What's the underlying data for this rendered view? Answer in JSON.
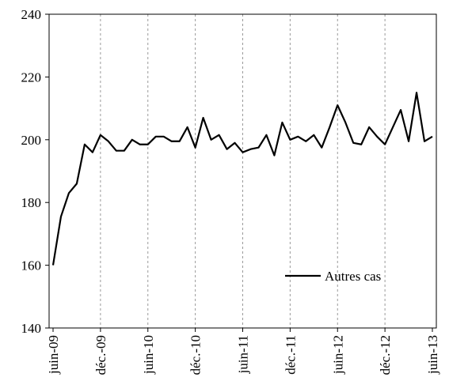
{
  "chart_data": {
    "type": "line",
    "title": "",
    "xlabel": "",
    "ylabel": "",
    "ylim": [
      140,
      240
    ],
    "yticks": [
      140,
      160,
      180,
      200,
      220,
      240
    ],
    "x_tick_labels": [
      "juin-09",
      "déc.-09",
      "juin-10",
      "déc.-10",
      "juin-11",
      "déc.-11",
      "juin-12",
      "déc.-12",
      "juin-13"
    ],
    "grid": "vertical dashed at x ticks",
    "legend_placement": "lower-right",
    "series": [
      {
        "name": "Autres cas",
        "color": "#000000",
        "x": [
          "2009-06",
          "2009-07",
          "2009-08",
          "2009-09",
          "2009-10",
          "2009-11",
          "2009-12",
          "2010-01",
          "2010-02",
          "2010-03",
          "2010-04",
          "2010-05",
          "2010-06",
          "2010-07",
          "2010-08",
          "2010-09",
          "2010-10",
          "2010-11",
          "2010-12",
          "2011-01",
          "2011-02",
          "2011-03",
          "2011-04",
          "2011-05",
          "2011-06",
          "2011-07",
          "2011-08",
          "2011-09",
          "2011-10",
          "2011-11",
          "2011-12",
          "2012-01",
          "2012-02",
          "2012-03",
          "2012-04",
          "2012-05",
          "2012-06",
          "2012-07",
          "2012-08",
          "2012-09",
          "2012-10",
          "2012-11",
          "2012-12",
          "2013-01",
          "2013-02",
          "2013-03",
          "2013-04",
          "2013-05",
          "2013-06"
        ],
        "values": [
          160,
          175.5,
          183,
          186,
          198.5,
          196,
          201.5,
          199.5,
          196.5,
          196.5,
          200,
          198.5,
          198.5,
          201,
          201,
          199.5,
          199.5,
          204,
          197.5,
          207,
          200,
          201.5,
          197,
          199,
          196,
          197,
          197.5,
          201.5,
          195,
          205.5,
          200,
          201,
          199.5,
          201.5,
          197.5,
          204,
          211,
          205.5,
          199,
          198.5,
          204,
          201,
          198.5,
          204,
          209.5,
          199.5,
          215,
          199.5,
          201
        ]
      }
    ]
  }
}
